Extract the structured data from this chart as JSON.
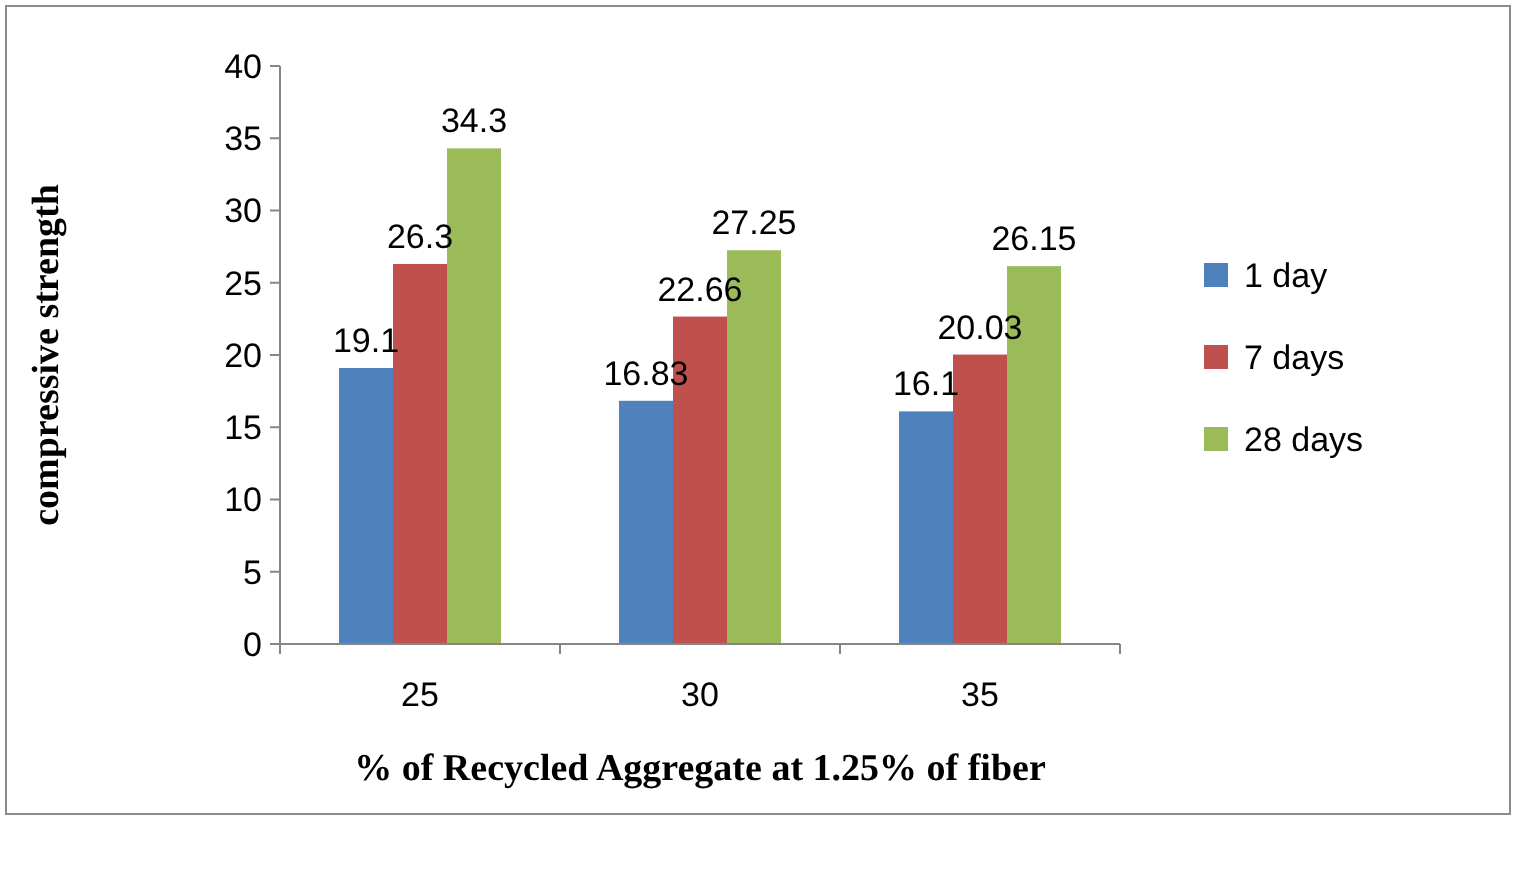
{
  "chart_data": {
    "type": "bar",
    "xlabel": "% of Recycled Aggregate at 1.25% of fiber",
    "ylabel": "compressive strength",
    "categories": [
      "25",
      "30",
      "35"
    ],
    "series": [
      {
        "name": "1 day",
        "color": "#4f81bd",
        "values": [
          19.1,
          16.83,
          16.1
        ]
      },
      {
        "name": "7 days",
        "color": "#c0504d",
        "values": [
          26.3,
          22.66,
          20.03
        ]
      },
      {
        "name": "28 days",
        "color": "#9bbb59",
        "values": [
          34.3,
          27.25,
          26.15
        ]
      }
    ],
    "ylim": [
      0,
      40
    ],
    "yticks": [
      0,
      5,
      10,
      15,
      20,
      25,
      30,
      35,
      40
    ],
    "data_labels": true,
    "legend": "right",
    "grid": false
  }
}
